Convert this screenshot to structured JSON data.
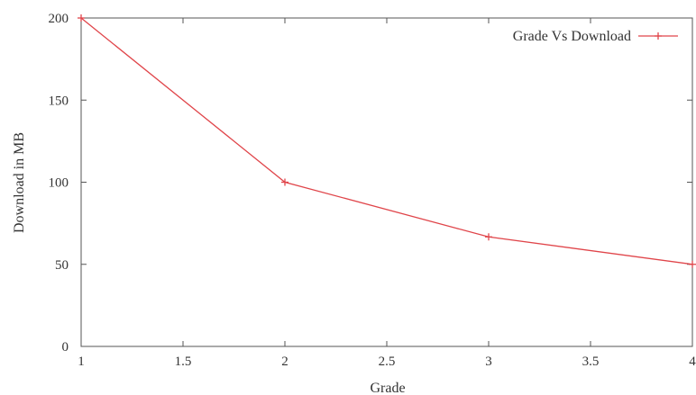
{
  "chart_data": {
    "type": "line",
    "x": [
      1,
      2,
      3,
      4
    ],
    "series": [
      {
        "name": "Grade Vs Download",
        "values": [
          200,
          100,
          66.7,
          50
        ],
        "color": "#e0454a",
        "marker": "plus"
      }
    ],
    "xlabel": "Grade",
    "ylabel": "Download in MB",
    "xlim": [
      1,
      4
    ],
    "ylim": [
      0,
      200
    ],
    "xticks": [
      1,
      1.5,
      2,
      2.5,
      3,
      3.5,
      4
    ],
    "yticks": [
      0,
      50,
      100,
      150,
      200
    ],
    "grid": false,
    "legend": "top-right"
  }
}
